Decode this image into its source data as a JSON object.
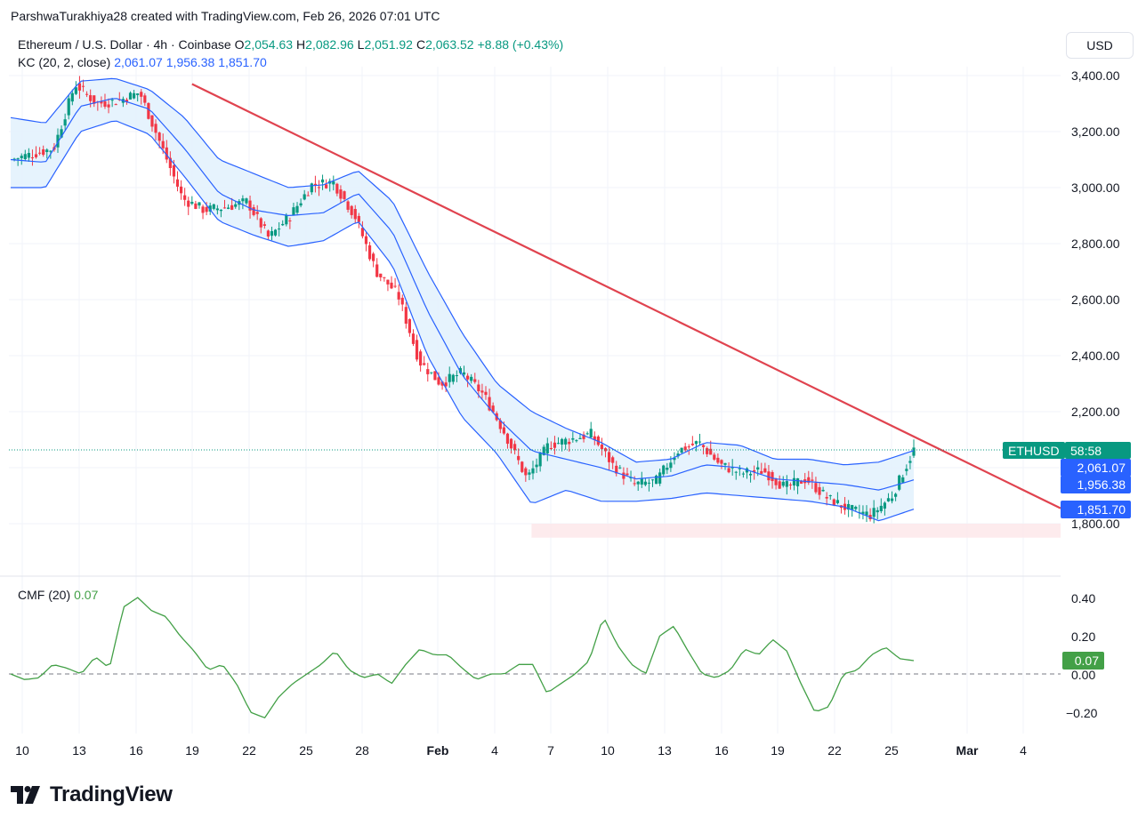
{
  "header": {
    "text": "ParshwaTurakhiya28 created with TradingView.com, Feb 26, 2026 07:01 UTC"
  },
  "legend": {
    "symbol": "Ethereum / U.S. Dollar · 4h · Coinbase",
    "o_label": "O",
    "o_value": "2,054.63",
    "h_label": "H",
    "h_value": "2,082.96",
    "l_label": "L",
    "l_value": "2,051.92",
    "c_label": "C",
    "c_value": "2,063.52",
    "change": "+8.88 (+0.43%)",
    "kc_label": "KC (20, 2, close)",
    "kc_upper": "2,061.07",
    "kc_mid": "1,956.38",
    "kc_lower": "1,851.70",
    "cmf_label": "CMF (20)",
    "cmf_value": "0.07"
  },
  "currency_button": "USD",
  "price_tags": {
    "symbol": "ETHUSD",
    "countdown": "58:58",
    "upper": "2,061.07",
    "mid": "1,956.38",
    "lower": "1,851.70",
    "cmf": "0.07"
  },
  "y_axis_labels": [
    "3,400.00",
    "3,200.00",
    "3,000.00",
    "2,800.00",
    "2,600.00",
    "2,400.00",
    "2,200.00",
    "1,800.00"
  ],
  "cmf_axis_labels": [
    "0.40",
    "0.20",
    "0.00",
    "−0.20"
  ],
  "x_axis_labels": [
    "10",
    "13",
    "16",
    "19",
    "22",
    "25",
    "28",
    "Feb",
    "4",
    "7",
    "10",
    "13",
    "16",
    "19",
    "22",
    "25",
    "Mar",
    "4"
  ],
  "brand": "TradingView",
  "colors": {
    "up": "#089981",
    "down": "#f23645",
    "kc_line": "#2962ff",
    "kc_fill": "#e3f2fd",
    "trendline": "#e0434f",
    "support_zone": "#fde7ea",
    "cmf_line": "#43a047"
  },
  "chart_data": [
    {
      "type": "candlestick",
      "title": "Ethereum / U.S. Dollar · 4h · Coinbase",
      "ylim": [
        1750,
        3430
      ],
      "x_dates": [
        "Jan 10",
        "Jan 13",
        "Jan 16",
        "Jan 19",
        "Jan 22",
        "Jan 25",
        "Jan 28",
        "Feb 1",
        "Feb 4",
        "Feb 7",
        "Feb 10",
        "Feb 13",
        "Feb 16",
        "Feb 19",
        "Feb 22",
        "Feb 25",
        "Feb 26"
      ],
      "close_path": [
        3100,
        3120,
        3140,
        3370,
        3300,
        3310,
        3340,
        3150,
        2960,
        2920,
        2930,
        2950,
        2820,
        2900,
        3010,
        3020,
        2900,
        2700,
        2620,
        2380,
        2300,
        2340,
        2260,
        2120,
        1960,
        2080,
        2100,
        2120,
        2010,
        1940,
        1950,
        2060,
        2090,
        2010,
        1980,
        1990,
        1930,
        1960,
        1890,
        1850,
        1830,
        1900,
        2063.52
      ],
      "keltner_channel": {
        "upper_path": [
          3250,
          3230,
          3380,
          3390,
          3350,
          3250,
          3100,
          3050,
          3000,
          3010,
          3060,
          2950,
          2700,
          2480,
          2300,
          2200,
          2140,
          2090,
          2020,
          2030,
          2090,
          2080,
          2030,
          2030,
          2010,
          2020,
          2061.07
        ],
        "middle_path": [
          3100,
          3090,
          3290,
          3320,
          3280,
          3140,
          2980,
          2920,
          2900,
          2910,
          2980,
          2840,
          2560,
          2330,
          2180,
          2060,
          2030,
          2000,
          1960,
          1970,
          2010,
          2000,
          1960,
          1950,
          1940,
          1920,
          1956.38
        ],
        "lower_path": [
          3000,
          3000,
          3200,
          3240,
          3190,
          3040,
          2880,
          2830,
          2790,
          2810,
          2880,
          2720,
          2400,
          2180,
          2050,
          1870,
          1920,
          1880,
          1880,
          1890,
          1910,
          1900,
          1890,
          1880,
          1860,
          1810,
          1851.7
        ]
      },
      "trendline": {
        "from": {
          "date": "Jan 19",
          "price": 3370
        },
        "to": {
          "date": "Mar 5",
          "price": 1855
        }
      },
      "support_zone": {
        "from_date": "Feb 6",
        "price_low": 1750,
        "price_high": 1800
      },
      "last_price": 2063.52
    },
    {
      "type": "line",
      "title": "CMF (20)",
      "ylim": [
        -0.3,
        0.45
      ],
      "zero_line": 0,
      "values": [
        0.0,
        -0.03,
        -0.02,
        0.05,
        0.03,
        0.0,
        0.09,
        0.03,
        0.35,
        0.4,
        0.33,
        0.3,
        0.2,
        0.12,
        0.02,
        0.05,
        -0.05,
        -0.2,
        -0.23,
        -0.12,
        -0.05,
        0.0,
        0.05,
        0.12,
        0.02,
        -0.02,
        0.0,
        -0.05,
        0.05,
        0.13,
        0.1,
        0.1,
        0.03,
        -0.03,
        0.0,
        0.0,
        0.05,
        0.05,
        -0.1,
        -0.05,
        0.0,
        0.07,
        0.3,
        0.15,
        0.05,
        0.0,
        0.2,
        0.25,
        0.12,
        0.0,
        -0.02,
        0.02,
        0.13,
        0.1,
        0.18,
        0.12,
        -0.05,
        -0.2,
        -0.17,
        0.0,
        0.02,
        0.1,
        0.14,
        0.08,
        0.07
      ],
      "last_value": 0.07
    }
  ]
}
